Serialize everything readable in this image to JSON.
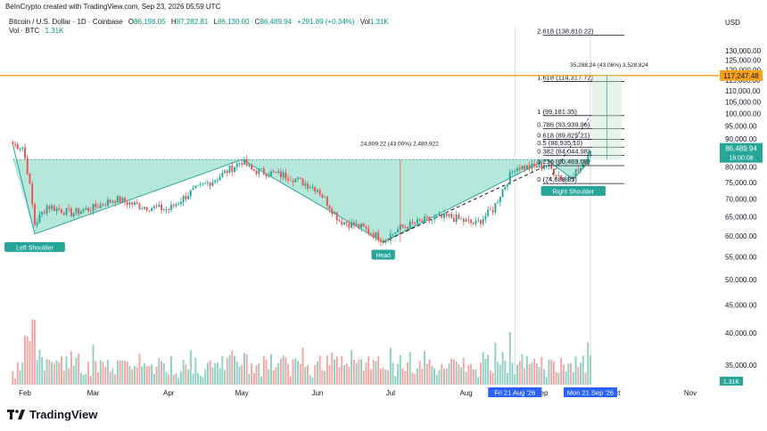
{
  "header": {
    "note": "BeInCrypto created with TradingView.com, Sep 23, 2026 05:59 UTC",
    "symbol": "Bitcoin / U.S. Dollar · 1D · Coinbase",
    "ohlc": [
      {
        "k": "O",
        "v": "86,198.05"
      },
      {
        "k": "H",
        "v": "87,282.81"
      },
      {
        "k": "L",
        "v": "86,130.00"
      },
      {
        "k": "C",
        "v": "86,489.94"
      }
    ],
    "change": "+291.89 (+0.34%)",
    "vol_label": "Vol",
    "vol_value": "1.31K",
    "vol2_label": "Vol · BTC",
    "vol2_value": "1.31K"
  },
  "brand": {
    "name": "TradingView",
    "icon": "tradingview-logo-icon"
  },
  "colors": {
    "up": "#26a69a",
    "down": "#ef5350",
    "vol_up": "#8fd0c3",
    "vol_down": "#f4a6a4",
    "pattern_fill": "#9ddfcf",
    "orange": "#f6a01a",
    "accent_blue": "#2962ff"
  },
  "chart_data": {
    "type": "candlestick",
    "title": "Bitcoin / U.S. Dollar · 1D · Coinbase",
    "currency_label": "USD",
    "y_ticks": [
      "130,000.00",
      "125,000.00",
      "120,000.00",
      "115,000.00",
      "110,000.00",
      "105,000.00",
      "100,000.00",
      "95,000.00",
      "90,000.00",
      "85,000.00",
      "80,000.00",
      "75,000.00",
      "70,000.00",
      "65,000.00",
      "60,000.00",
      "55,000.00",
      "50,000.00",
      "45,000.00",
      "40,000.00",
      "35,000.00"
    ],
    "y_scale": "log",
    "ylim": [
      30500,
      142000
    ],
    "x_ticks": [
      "Feb",
      "Mar",
      "Apr",
      "May",
      "Jun",
      "Jul",
      "Aug",
      "Sep",
      "Oct",
      "Nov"
    ],
    "time_markers": [
      "Fri 21 Aug '26",
      "Mon 21 Sep '26"
    ],
    "last_price": "86,489.94",
    "countdown": "18:00:08",
    "last_volume": "1.31K",
    "target_level": "117,247.48",
    "fib_levels": [
      {
        "label": "2.618 (138,810.22)",
        "value": 138810.22
      },
      {
        "label": "1.618 (114,317.72)",
        "value": 114317.72
      },
      {
        "label": "1 (99,181.35)",
        "value": 99181.35
      },
      {
        "label": "0.786 (93,939.96)",
        "value": 93939.96
      },
      {
        "label": "0.618 (89,825.21)",
        "value": 89825.21
      },
      {
        "label": "0.5 (86,935.10)",
        "value": 86935.1
      },
      {
        "label": "0.382 (84,044.98)",
        "value": 84044.98
      },
      {
        "label": "0.236 (80,469.08)",
        "value": 80469.08
      },
      {
        "label": "0 (74,688.85)",
        "value": 74688.85
      }
    ],
    "measurements": [
      {
        "label": "24,809.22 (43.00%) 2,480,922"
      },
      {
        "label": "35,288.24 (43.06%) 3,528,824"
      }
    ],
    "pattern_labels": [
      "Left Shoulder",
      "Head",
      "Right Shoulder"
    ],
    "ohlc_close_path": [
      [
        "Jan 27",
        88000
      ],
      [
        "Jan 31",
        87000
      ],
      [
        "Feb 2",
        79000
      ],
      [
        "Feb 5",
        63000
      ],
      [
        "Feb 10",
        68000
      ],
      [
        "Feb 20",
        66000
      ],
      [
        "Mar 1",
        67500
      ],
      [
        "Mar 10",
        70000
      ],
      [
        "Mar 20",
        68000
      ],
      [
        "Apr 1",
        67000
      ],
      [
        "Apr 10",
        72000
      ],
      [
        "Apr 20",
        76000
      ],
      [
        "May 1",
        82000
      ],
      [
        "May 5",
        79000
      ],
      [
        "May 20",
        77000
      ],
      [
        "Jun 1",
        73000
      ],
      [
        "Jun 10",
        64000
      ],
      [
        "Jun 20",
        62000
      ],
      [
        "Jun 28",
        59000
      ],
      [
        "Jul 5",
        62000
      ],
      [
        "Jul 15",
        64000
      ],
      [
        "Jul 25",
        65000
      ],
      [
        "Aug 5",
        63000
      ],
      [
        "Aug 12",
        67000
      ],
      [
        "Aug 21",
        80000
      ],
      [
        "Aug 28",
        80000
      ],
      [
        "Sep 3",
        80500
      ],
      [
        "Sep 10",
        76000
      ],
      [
        "Sep 14",
        78000
      ],
      [
        "Sep 18",
        80000
      ],
      [
        "Sep 21",
        86490
      ]
    ]
  }
}
